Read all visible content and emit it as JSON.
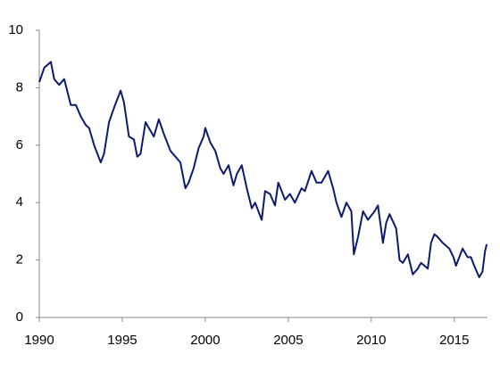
{
  "chart_data": {
    "type": "line",
    "x": [
      1990.0,
      1990.3,
      1990.7,
      1990.9,
      1991.2,
      1991.5,
      1991.9,
      1992.2,
      1992.5,
      1992.8,
      1993.0,
      1993.3,
      1993.7,
      1993.9,
      1994.2,
      1994.5,
      1994.9,
      1995.1,
      1995.4,
      1995.7,
      1995.9,
      1996.1,
      1996.4,
      1996.6,
      1996.9,
      1997.2,
      1997.5,
      1997.9,
      1998.2,
      1998.5,
      1998.8,
      1999.0,
      1999.3,
      1999.6,
      1999.9,
      2000.0,
      2000.3,
      2000.6,
      2000.9,
      2001.1,
      2001.4,
      2001.7,
      2001.9,
      2002.2,
      2002.5,
      2002.8,
      2003.0,
      2003.4,
      2003.6,
      2003.9,
      2004.2,
      2004.4,
      2004.8,
      2005.1,
      2005.4,
      2005.8,
      2006.0,
      2006.4,
      2006.7,
      2007.0,
      2007.4,
      2007.7,
      2007.9,
      2008.2,
      2008.5,
      2008.8,
      2008.95,
      2009.2,
      2009.5,
      2009.8,
      2010.2,
      2010.4,
      2010.7,
      2010.9,
      2011.1,
      2011.5,
      2011.7,
      2011.9,
      2012.2,
      2012.5,
      2012.8,
      2013.0,
      2013.4,
      2013.6,
      2013.8,
      2014.0,
      2014.3,
      2014.7,
      2014.95,
      2015.1,
      2015.5,
      2015.8,
      2016.0,
      2016.2,
      2016.5,
      2016.7,
      2016.85,
      2016.95
    ],
    "values": [
      8.2,
      8.7,
      8.9,
      8.3,
      8.1,
      8.3,
      7.4,
      7.4,
      7.0,
      6.7,
      6.6,
      6.0,
      5.4,
      5.7,
      6.8,
      7.3,
      7.9,
      7.5,
      6.3,
      6.2,
      5.6,
      5.7,
      6.8,
      6.6,
      6.3,
      6.9,
      6.4,
      5.8,
      5.6,
      5.4,
      4.5,
      4.7,
      5.2,
      5.9,
      6.3,
      6.6,
      6.1,
      5.8,
      5.2,
      5.0,
      5.3,
      4.6,
      5.0,
      5.3,
      4.5,
      3.8,
      4.0,
      3.4,
      4.4,
      4.3,
      3.9,
      4.7,
      4.1,
      4.3,
      4.0,
      4.5,
      4.4,
      5.1,
      4.7,
      4.7,
      5.1,
      4.5,
      4.0,
      3.5,
      4.0,
      3.7,
      2.2,
      2.8,
      3.7,
      3.4,
      3.7,
      3.9,
      2.6,
      3.3,
      3.6,
      3.1,
      2.0,
      1.9,
      2.2,
      1.5,
      1.7,
      1.9,
      1.7,
      2.6,
      2.9,
      2.8,
      2.6,
      2.4,
      2.1,
      1.8,
      2.4,
      2.1,
      2.1,
      1.8,
      1.4,
      1.6,
      2.3,
      2.55
    ],
    "color": "#0d1b6e",
    "xlim": [
      1990,
      2017
    ],
    "xticks": [
      1990,
      1995,
      2000,
      2005,
      2010,
      2015
    ],
    "ylim": [
      0,
      10
    ],
    "yticks": [
      0,
      2,
      4,
      6,
      8,
      10
    ]
  }
}
